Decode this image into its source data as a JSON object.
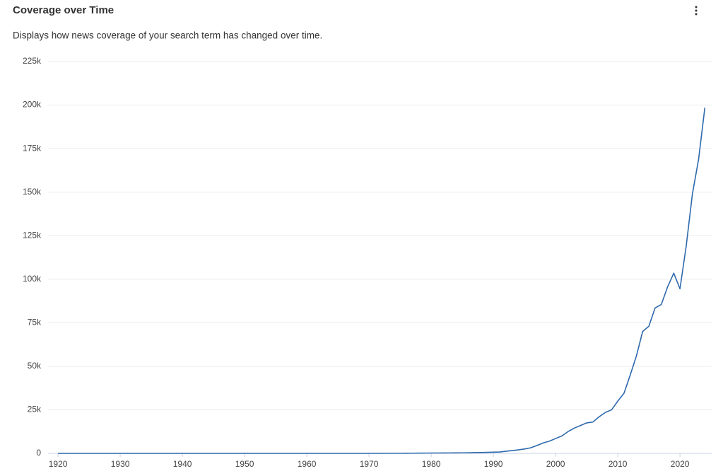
{
  "chart_data": {
    "type": "line",
    "title": "Coverage over Time",
    "subtitle": "Displays how news coverage of your search term has changed over time.",
    "x": [
      1920,
      1930,
      1940,
      1950,
      1960,
      1970,
      1975,
      1976,
      1977,
      1978,
      1979,
      1980,
      1981,
      1982,
      1983,
      1984,
      1985,
      1986,
      1987,
      1988,
      1989,
      1990,
      1991,
      1992,
      1993,
      1994,
      1995,
      1996,
      1997,
      1998,
      1999,
      2000,
      2001,
      2002,
      2003,
      2004,
      2005,
      2006,
      2007,
      2008,
      2009,
      2010,
      2011,
      2012,
      2013,
      2014,
      2015,
      2016,
      2017,
      2018,
      2019,
      2020,
      2021,
      2022,
      2023,
      2024
    ],
    "series": [
      {
        "color": "#2e69ac",
        "values": [
          0,
          0,
          0,
          0,
          0,
          0,
          50,
          80,
          100,
          120,
          150,
          200,
          200,
          220,
          250,
          280,
          300,
          350,
          420,
          500,
          600,
          700,
          800,
          1200,
          1600,
          2000,
          2500,
          3200,
          4500,
          6000,
          7000,
          8500,
          10000,
          12500,
          14500,
          16000,
          17500,
          18000,
          21000,
          23500,
          25000,
          30000,
          34500,
          45000,
          56000,
          70000,
          73000,
          83500,
          85500,
          95500,
          103500,
          94500,
          119000,
          149000,
          169000,
          198500
        ]
      }
    ],
    "xlim": [
      1918.4,
      2025.1
    ],
    "ylim": [
      0,
      225000
    ],
    "xticks": [
      1920,
      1930,
      1940,
      1950,
      1960,
      1970,
      1980,
      1990,
      2000,
      2010,
      2020
    ],
    "yticks": [
      0,
      {
        "value": 25000,
        "label": "25k"
      },
      {
        "value": 50000,
        "label": "50k"
      },
      {
        "value": 75000,
        "label": "75k"
      },
      {
        "value": 100000,
        "label": "100k"
      },
      {
        "value": 125000,
        "label": "125k"
      },
      {
        "value": 150000,
        "label": "150k"
      },
      {
        "value": 175000,
        "label": "175k"
      },
      {
        "value": 200000,
        "label": "200k"
      },
      {
        "value": 225000,
        "label": "225k"
      }
    ],
    "grid": true
  }
}
